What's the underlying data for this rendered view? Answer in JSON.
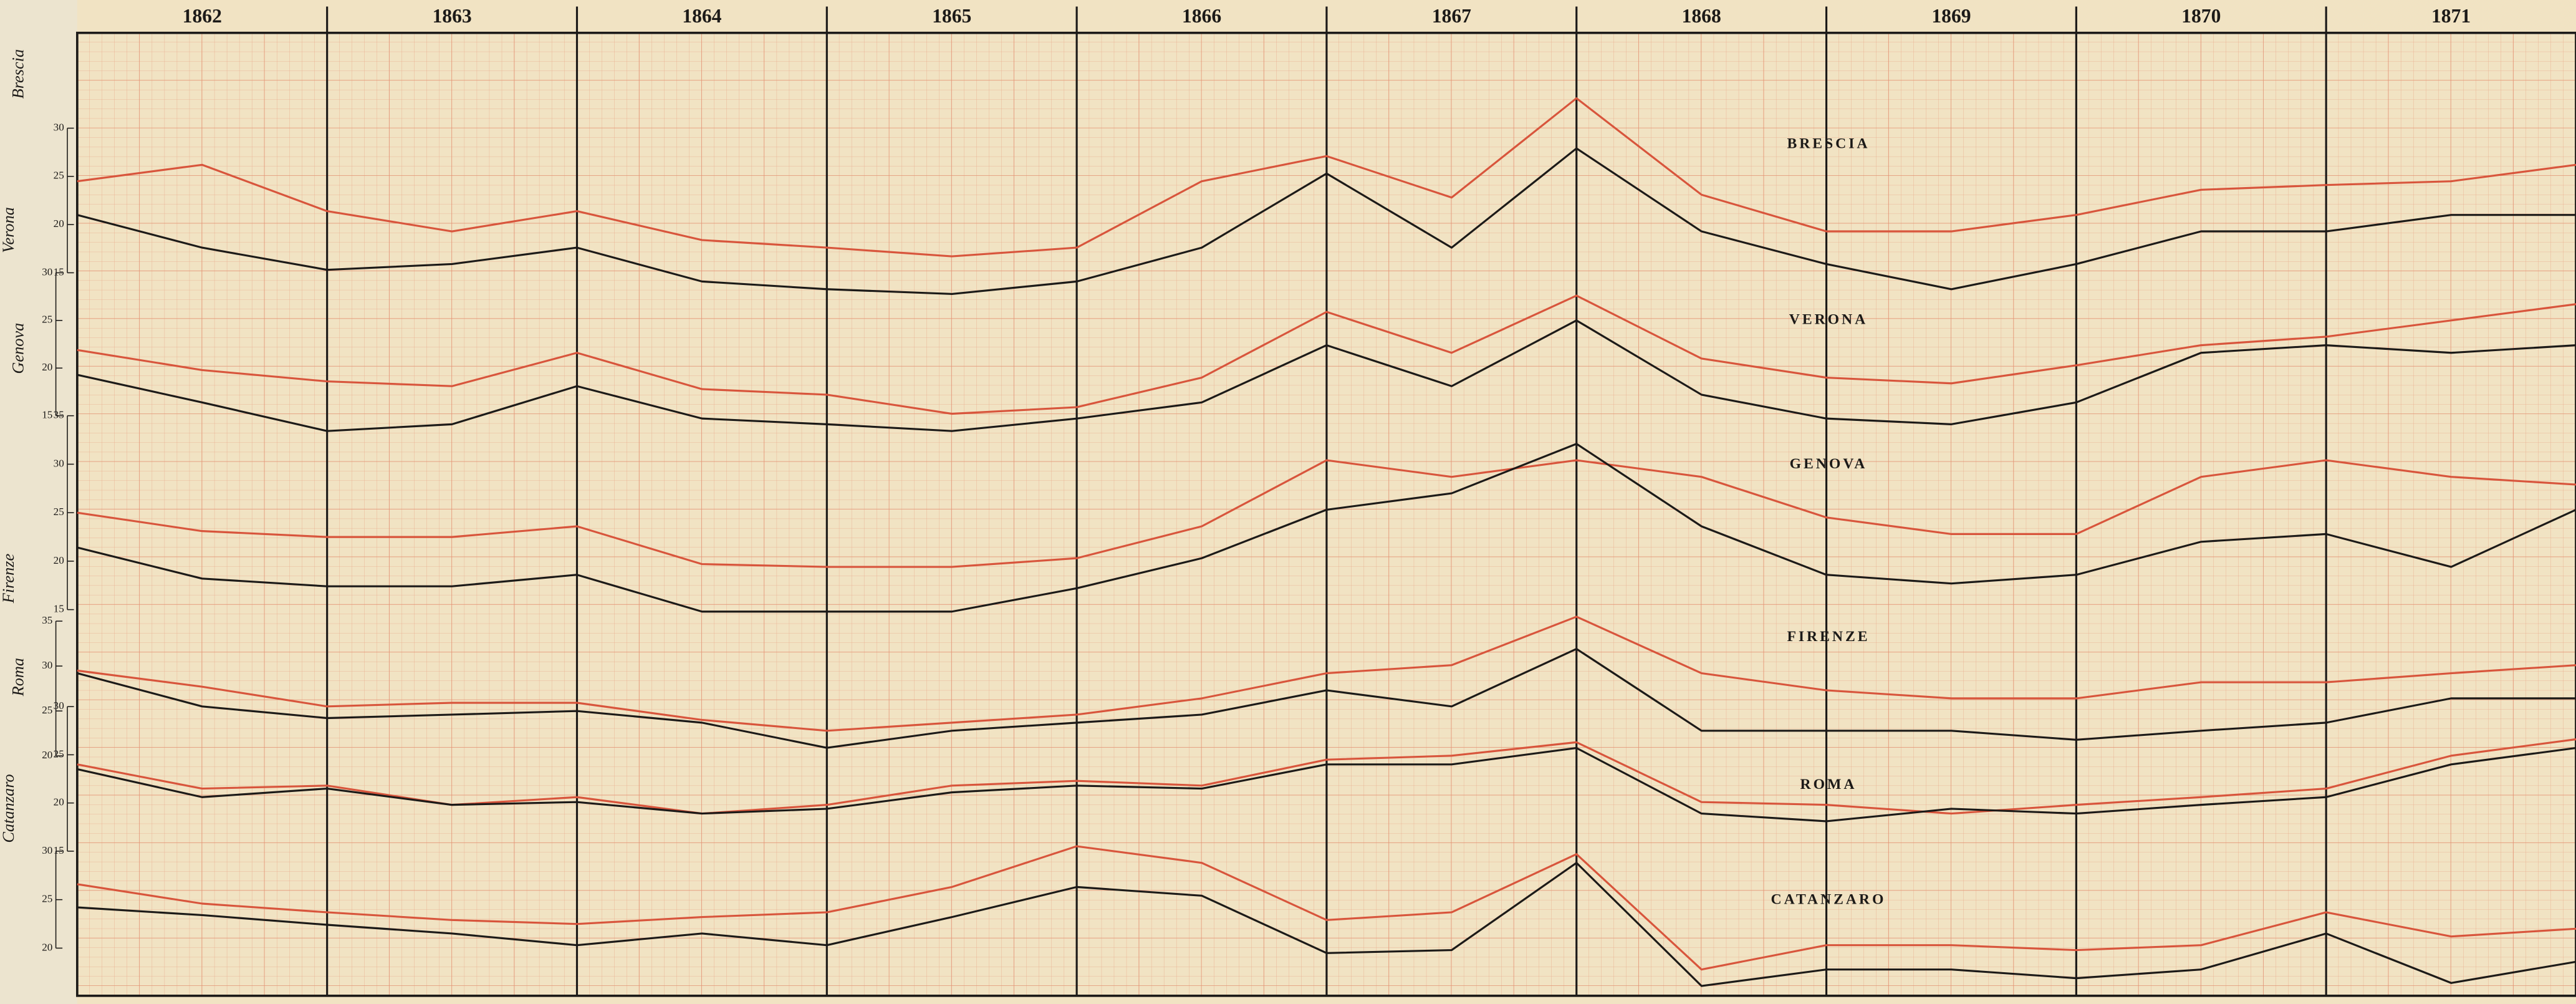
{
  "chart_data": {
    "type": "line",
    "categories": [
      "1862",
      "1863",
      "1864",
      "1865",
      "1866",
      "1867",
      "1868",
      "1869",
      "1870",
      "1871"
    ],
    "xlim": [
      1862,
      1872
    ],
    "x": [
      1862,
      1862.5,
      1863,
      1863.5,
      1864,
      1864.5,
      1865,
      1865.5,
      1866,
      1866.5,
      1867,
      1867.5,
      1868,
      1868.5,
      1869,
      1869.5,
      1870,
      1870.5,
      1871,
      1871.5,
      1872
    ],
    "grid": true,
    "panels": [
      {
        "label": "BRESCIA",
        "axis_label": "Brescia",
        "ylim": [
          15,
          30
        ],
        "yticks": [
          30,
          25,
          20,
          15
        ],
        "series": [
          {
            "color": "#d8553c",
            "values": [
              24.5,
              26.2,
              21.4,
              19.3,
              21.4,
              18.4,
              17.6,
              16.7,
              17.6,
              24.5,
              27.1,
              22.8,
              33.1,
              23.1,
              19.3,
              19.3,
              21.0,
              23.6,
              24.1,
              24.5,
              26.2
            ]
          },
          {
            "color": "#1c1a18",
            "values": [
              21.0,
              17.6,
              15.3,
              15.9,
              17.6,
              14.1,
              13.3,
              12.8,
              14.1,
              17.6,
              25.3,
              17.6,
              27.9,
              19.3,
              15.9,
              13.3,
              15.9,
              19.3,
              19.3,
              21.0,
              21.0
            ]
          }
        ]
      },
      {
        "label": "VERONA",
        "axis_label": "Verona",
        "ylim": [
          15,
          30
        ],
        "yticks": [
          30,
          25,
          20,
          15
        ],
        "series": [
          {
            "color": "#d8553c",
            "values": [
              21.9,
              19.8,
              18.6,
              18.1,
              21.6,
              17.8,
              17.2,
              15.2,
              15.9,
              19.0,
              25.9,
              21.6,
              27.6,
              21.0,
              19.0,
              18.4,
              20.3,
              22.4,
              23.3,
              25.0,
              26.7
            ]
          },
          {
            "color": "#1c1a18",
            "values": [
              19.3,
              16.4,
              13.4,
              14.1,
              18.1,
              14.7,
              14.1,
              13.4,
              14.7,
              16.4,
              22.4,
              18.1,
              25.0,
              17.2,
              14.7,
              14.1,
              16.4,
              21.6,
              22.4,
              21.6,
              22.4
            ]
          }
        ]
      },
      {
        "label": "GENOVA",
        "axis_label": "Genova",
        "ylim": [
          15,
          35
        ],
        "yticks": [
          35,
          30,
          25,
          20,
          15
        ],
        "series": [
          {
            "color": "#d8553c",
            "values": [
              25.0,
              23.1,
              22.5,
              22.5,
              23.6,
              19.7,
              19.4,
              19.4,
              20.3,
              23.6,
              30.4,
              28.7,
              30.4,
              28.7,
              24.5,
              22.8,
              22.8,
              28.7,
              30.4,
              28.7,
              27.9
            ]
          },
          {
            "color": "#1c1a18",
            "values": [
              21.4,
              18.2,
              17.4,
              17.4,
              18.6,
              14.8,
              14.8,
              14.8,
              17.2,
              20.3,
              25.3,
              27.0,
              32.1,
              23.6,
              18.6,
              17.7,
              18.6,
              22.0,
              22.8,
              19.4,
              25.3
            ]
          }
        ]
      },
      {
        "label": "FIRENZE",
        "axis_label": "Firenze",
        "ylim": [
          20,
          35
        ],
        "yticks": [
          35,
          30,
          25,
          20
        ],
        "series": [
          {
            "color": "#d8553c",
            "values": [
              29.5,
              27.7,
              25.5,
              25.9,
              25.9,
              24.0,
              22.8,
              23.7,
              24.6,
              26.4,
              29.2,
              30.1,
              35.5,
              29.2,
              27.3,
              26.4,
              26.4,
              28.2,
              28.2,
              29.2,
              30.1
            ]
          },
          {
            "color": "#1c1a18",
            "values": [
              29.2,
              25.5,
              24.2,
              24.6,
              25.0,
              23.7,
              20.9,
              22.8,
              23.7,
              24.6,
              27.3,
              25.5,
              31.9,
              22.8,
              22.8,
              22.8,
              21.8,
              22.8,
              23.7,
              26.4,
              26.4
            ]
          }
        ]
      },
      {
        "label": "ROMA",
        "axis_label": "Roma",
        "ylim": [
          15,
          30
        ],
        "yticks": [
          30,
          25,
          20,
          15
        ],
        "series": [
          {
            "color": "#d8553c",
            "values": [
              24.0,
              21.5,
              21.8,
              19.8,
              20.6,
              18.9,
              19.8,
              21.8,
              22.3,
              21.8,
              24.5,
              24.9,
              26.3,
              20.1,
              19.8,
              18.9,
              19.8,
              20.6,
              21.5,
              24.9,
              26.6
            ]
          },
          {
            "color": "#1c1a18",
            "values": [
              23.5,
              20.6,
              21.5,
              19.8,
              20.1,
              18.9,
              19.4,
              21.1,
              21.8,
              21.5,
              24.0,
              24.0,
              25.7,
              18.9,
              18.1,
              19.4,
              18.9,
              19.8,
              20.6,
              24.0,
              25.7
            ]
          }
        ]
      },
      {
        "label": "CATANZARO",
        "axis_label": "Catanzaro",
        "ylim": [
          20,
          30
        ],
        "yticks": [
          30,
          25,
          20
        ],
        "series": [
          {
            "color": "#d8553c",
            "values": [
              26.6,
              24.6,
              23.7,
              22.9,
              22.5,
              23.2,
              23.7,
              26.3,
              30.5,
              28.8,
              22.9,
              23.7,
              29.7,
              17.8,
              20.3,
              20.3,
              19.8,
              20.3,
              23.7,
              21.2,
              22.0
            ]
          },
          {
            "color": "#1c1a18",
            "values": [
              24.2,
              23.4,
              22.4,
              21.5,
              20.3,
              21.5,
              20.3,
              23.2,
              26.3,
              25.4,
              19.5,
              19.8,
              28.8,
              16.1,
              17.8,
              17.8,
              16.9,
              17.8,
              21.5,
              16.4,
              18.6
            ]
          }
        ]
      }
    ]
  }
}
